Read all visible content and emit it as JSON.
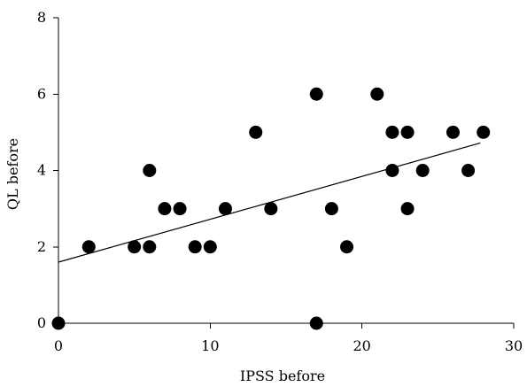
{
  "chart_data": {
    "type": "scatter",
    "xlabel": "IPSS before",
    "ylabel": "QL before",
    "xlim": [
      0,
      30
    ],
    "ylim": [
      0,
      8
    ],
    "xticks": [
      0,
      10,
      20,
      30
    ],
    "yticks": [
      0,
      2,
      4,
      6,
      8
    ],
    "grid": false,
    "series": [
      {
        "points": [
          {
            "x": 0,
            "y": 0
          },
          {
            "x": 2,
            "y": 2
          },
          {
            "x": 5,
            "y": 2
          },
          {
            "x": 6,
            "y": 2
          },
          {
            "x": 6,
            "y": 4
          },
          {
            "x": 7,
            "y": 3
          },
          {
            "x": 8,
            "y": 3
          },
          {
            "x": 9,
            "y": 2
          },
          {
            "x": 10,
            "y": 2
          },
          {
            "x": 11,
            "y": 3
          },
          {
            "x": 13,
            "y": 5
          },
          {
            "x": 14,
            "y": 3
          },
          {
            "x": 17,
            "y": 6
          },
          {
            "x": 17,
            "y": 0
          },
          {
            "x": 18,
            "y": 3
          },
          {
            "x": 19,
            "y": 2
          },
          {
            "x": 21,
            "y": 6
          },
          {
            "x": 22,
            "y": 5
          },
          {
            "x": 22,
            "y": 4
          },
          {
            "x": 23,
            "y": 5
          },
          {
            "x": 23,
            "y": 3
          },
          {
            "x": 24,
            "y": 4
          },
          {
            "x": 26,
            "y": 5
          },
          {
            "x": 27,
            "y": 4
          },
          {
            "x": 28,
            "y": 5
          }
        ]
      }
    ],
    "trendline": {
      "x": [
        0,
        27.8
      ],
      "y": [
        1.6,
        4.72
      ]
    },
    "colors": {
      "points": "#000000",
      "line": "#000000"
    }
  }
}
